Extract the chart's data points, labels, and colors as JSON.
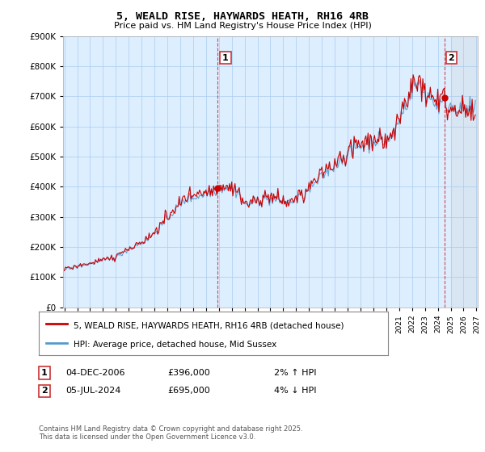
{
  "title": "5, WEALD RISE, HAYWARDS HEATH, RH16 4RB",
  "subtitle": "Price paid vs. HM Land Registry's House Price Index (HPI)",
  "legend_line1": "5, WEALD RISE, HAYWARDS HEATH, RH16 4RB (detached house)",
  "legend_line2": "HPI: Average price, detached house, Mid Sussex",
  "transaction1_date": "04-DEC-2006",
  "transaction1_price": "£396,000",
  "transaction1_hpi": "2% ↑ HPI",
  "transaction2_date": "05-JUL-2024",
  "transaction2_price": "£695,000",
  "transaction2_hpi": "4% ↓ HPI",
  "footer": "Contains HM Land Registry data © Crown copyright and database right 2025.\nThis data is licensed under the Open Government Licence v3.0.",
  "hpi_color": "#5599cc",
  "price_color": "#cc0000",
  "marker_color": "#cc0000",
  "background_color": "#ffffff",
  "chart_bg_color": "#ddeeff",
  "grid_color": "#aaccee",
  "ylim": [
    0,
    900000
  ],
  "yticks": [
    0,
    100000,
    200000,
    300000,
    400000,
    500000,
    600000,
    700000,
    800000,
    900000
  ],
  "x_start_year": 1995,
  "x_end_year": 2027,
  "t1_year": 2006.917,
  "t1_price": 396000,
  "t2_year": 2024.5,
  "t2_price": 695000
}
